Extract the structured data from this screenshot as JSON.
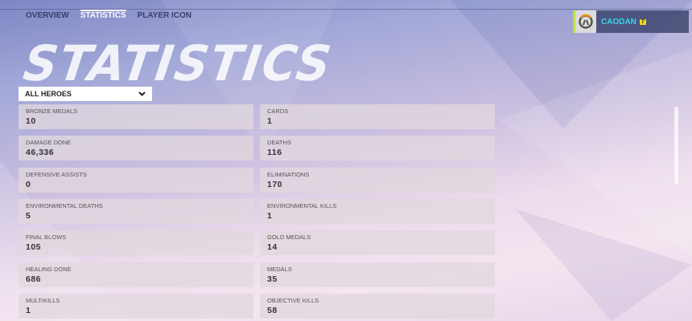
{
  "nav": {
    "tabs": [
      {
        "label": "OVERVIEW"
      },
      {
        "label": "STATISTICS",
        "active": true
      },
      {
        "label": "PLAYER ICON"
      }
    ]
  },
  "page_title": "STATISTICS",
  "filter": {
    "selected": "ALL HEROES"
  },
  "player": {
    "name": "CAODAN",
    "level": "7",
    "accent": "#38d4f0"
  },
  "stats": {
    "left": [
      {
        "label": "BRONZE MEDALS",
        "value": "10"
      },
      {
        "label": "DAMAGE DONE",
        "value": "46,336"
      },
      {
        "label": "DEFENSIVE ASSISTS",
        "value": "0"
      },
      {
        "label": "ENVIRONMENTAL DEATHS",
        "value": "5"
      },
      {
        "label": "FINAL BLOWS",
        "value": "105"
      },
      {
        "label": "HEALING DONE",
        "value": "686"
      },
      {
        "label": "MULTIKILLS",
        "value": "1"
      }
    ],
    "right": [
      {
        "label": "CARDS",
        "value": "1"
      },
      {
        "label": "DEATHS",
        "value": "116"
      },
      {
        "label": "ELIMINATIONS",
        "value": "170"
      },
      {
        "label": "ENVIRONMENTAL KILLS",
        "value": "1"
      },
      {
        "label": "GOLD MEDALS",
        "value": "14"
      },
      {
        "label": "MEDALS",
        "value": "35"
      },
      {
        "label": "OBJECTIVE KILLS",
        "value": "58"
      }
    ]
  }
}
